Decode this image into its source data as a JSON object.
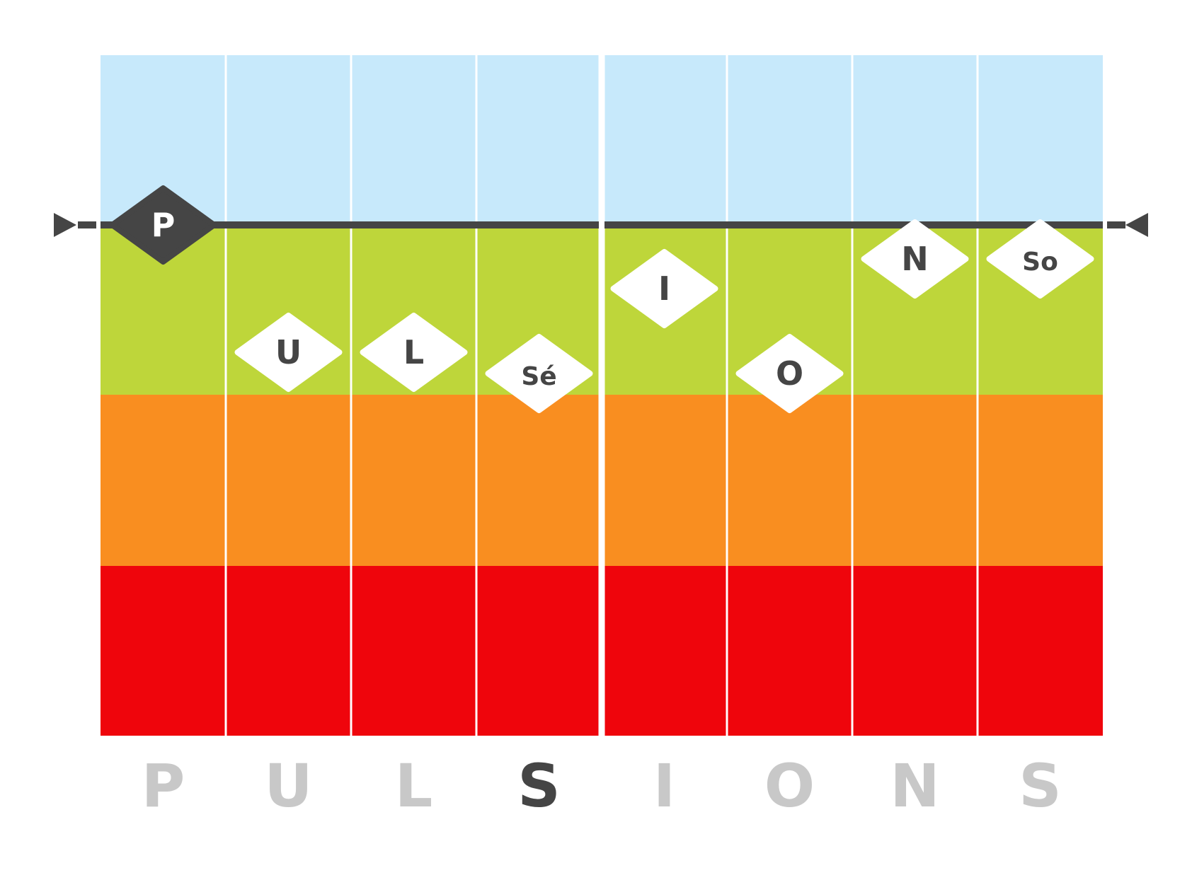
{
  "chart_data": {
    "type": "scatter",
    "title": "",
    "xlabel": "",
    "ylabel": "",
    "grid": true,
    "x_categories": [
      "P",
      "U",
      "L",
      "S",
      "I",
      "O",
      "N",
      "S"
    ],
    "bands": [
      {
        "name": "blue",
        "color": "#c7e9fb"
      },
      {
        "name": "green",
        "color": "#bed63a"
      },
      {
        "name": "orange",
        "color": "#f98e20"
      },
      {
        "name": "red",
        "color": "#ef050c"
      }
    ],
    "reference_line": {
      "color": "#454545",
      "value": 0
    },
    "points": [
      {
        "label": "P",
        "x": 0.5,
        "y": 0,
        "style": "dark"
      },
      {
        "label": "U",
        "x": 1.5,
        "y": -1.5,
        "style": "light"
      },
      {
        "label": "L",
        "x": 2.5,
        "y": -1.5,
        "style": "light"
      },
      {
        "label": "Sé",
        "x": 3.5,
        "y": -1.75,
        "style": "light"
      },
      {
        "label": "I",
        "x": 4.5,
        "y": -0.75,
        "style": "light"
      },
      {
        "label": "O",
        "x": 5.5,
        "y": -1.75,
        "style": "light"
      },
      {
        "label": "N",
        "x": 6.5,
        "y": -0.4,
        "style": "light"
      },
      {
        "label": "So",
        "x": 7.5,
        "y": -0.4,
        "style": "light"
      }
    ],
    "bottom_letters": [
      {
        "letter": "P",
        "highlight": false
      },
      {
        "letter": "U",
        "highlight": false
      },
      {
        "letter": "L",
        "highlight": false
      },
      {
        "letter": "S",
        "highlight": true
      },
      {
        "letter": "I",
        "highlight": false
      },
      {
        "letter": "O",
        "highlight": false
      },
      {
        "letter": "N",
        "highlight": false
      },
      {
        "letter": "S",
        "highlight": false
      }
    ],
    "colors": {
      "dark": "#454545",
      "light_letter": "#c8c8c8",
      "white": "#ffffff"
    }
  }
}
